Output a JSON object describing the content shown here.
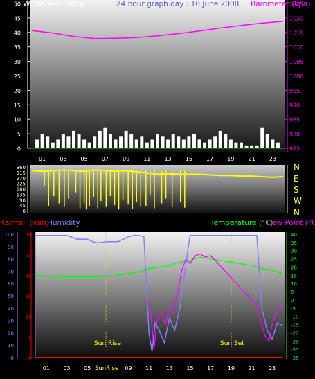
{
  "chart_data": [
    {
      "type": "line",
      "title": "24 hour graph day : 10 June 2008",
      "ylabel_left": "Windspeed (kph)",
      "ylabel_right": "Barometer (kpa)",
      "ylim_left": [
        0,
        50
      ],
      "ylim_right": [
        975,
        1025
      ],
      "yticks_left": [
        "0",
        "5",
        "10",
        "15",
        "20",
        "25",
        "30",
        "35",
        "40",
        "45",
        "50"
      ],
      "yticks_right": [
        "975",
        "980",
        "985",
        "990",
        "995",
        "1000",
        "1005",
        "1010",
        "1015",
        "1020",
        "1025"
      ],
      "xticks": [
        "01",
        "03",
        "05",
        "07",
        "09",
        "11",
        "13",
        "15",
        "17",
        "19",
        "21",
        "23"
      ],
      "grid": false,
      "series": [
        {
          "name": "Barometer (kpa)",
          "color": "#ff00ff",
          "axis": "right",
          "x": [
            0,
            2,
            4,
            6,
            8,
            10,
            12,
            14,
            16,
            18,
            20,
            22,
            24
          ],
          "values": [
            1015.6,
            1014.8,
            1013.6,
            1012.9,
            1013.0,
            1013.2,
            1013.8,
            1014.6,
            1015.5,
            1016.5,
            1017.4,
            1018.2,
            1018.8
          ]
        },
        {
          "name": "Windspeed (kph)",
          "color": "#ffffff",
          "axis": "left",
          "style": "bars",
          "x": [
            0.5,
            1,
            1.5,
            2,
            2.5,
            3,
            3.5,
            4,
            4.5,
            5,
            5.5,
            6,
            6.5,
            7,
            7.5,
            8,
            8.5,
            9,
            9.5,
            10,
            10.5,
            11,
            11.5,
            12,
            12.5,
            13,
            13.5,
            14,
            14.5,
            15,
            15.5,
            16,
            16.5,
            17,
            17.5,
            18,
            18.5,
            19,
            19.5,
            20,
            20.5,
            21,
            21.5,
            22,
            22.5,
            23,
            23.5
          ],
          "values": [
            3,
            5,
            4,
            2,
            3,
            5,
            4,
            6,
            5,
            3,
            2,
            4,
            6,
            7,
            5,
            3,
            4,
            6,
            5,
            3,
            4,
            2,
            3,
            5,
            4,
            3,
            5,
            4,
            3,
            4,
            5,
            3,
            2,
            3,
            4,
            6,
            5,
            3,
            2,
            2,
            1,
            1,
            1,
            7,
            5,
            3,
            2
          ]
        }
      ]
    },
    {
      "type": "line",
      "title": "",
      "yticks_left": [
        "0",
        "45",
        "90",
        "135",
        "180",
        "225",
        "270",
        "315",
        "360"
      ],
      "yticks_right": [
        "N",
        "E",
        "S",
        "W",
        "N"
      ],
      "ylim": [
        0,
        360
      ],
      "series": [
        {
          "name": "Wind direction",
          "color": "#ffff00",
          "x": [
            0,
            1,
            2,
            3,
            4,
            5,
            6,
            7,
            8,
            9,
            10,
            11,
            12,
            13,
            14,
            15,
            16,
            17,
            18,
            19,
            20,
            21,
            22,
            23,
            24
          ],
          "values": [
            330,
            325,
            330,
            335,
            330,
            325,
            335,
            330,
            325,
            330,
            320,
            310,
            300,
            305,
            300,
            300,
            300,
            295,
            290,
            290,
            285,
            285,
            280,
            275,
            280
          ]
        }
      ]
    },
    {
      "type": "line",
      "title": "",
      "ylabel_left_1": "Rainfall (mm)",
      "ylabel_left_2": "Humidity",
      "ylabel_right_1": "Temperature (°C)",
      "ylabel_right_2": "Dew Point (°C)",
      "ylim_rain": [
        0,
        30
      ],
      "ylim_humidity": [
        0,
        100
      ],
      "ylim_temp": [
        -35,
        40
      ],
      "yticks_rain": [
        "0",
        "5",
        "10",
        "15",
        "20",
        "25",
        "30"
      ],
      "yticks_humidity": [
        "0",
        "10",
        "20",
        "30",
        "40",
        "50",
        "60",
        "70",
        "80",
        "90",
        "100"
      ],
      "yticks_temp": [
        "-35",
        "-30",
        "-25",
        "-20",
        "-15",
        "-10",
        "-5",
        "0",
        "5",
        "10",
        "15",
        "20",
        "25",
        "30",
        "35",
        "40"
      ],
      "xticks": [
        "01",
        "03",
        "05",
        "07",
        "09",
        "11",
        "13",
        "15",
        "17",
        "19",
        "21",
        "23"
      ],
      "annotations": [
        "Sun Rise",
        "Sun Set",
        "SunRise"
      ],
      "series": [
        {
          "name": "Humidity",
          "color": "#8080ff",
          "axis": "humidity",
          "x": [
            0,
            1,
            2,
            3,
            4,
            5,
            5.5,
            6,
            7,
            8,
            9,
            9.5,
            10,
            10.5,
            11,
            11.3,
            11.6,
            12,
            12.5,
            13,
            13.5,
            14,
            14.5,
            15,
            16,
            17,
            18,
            19,
            20,
            21,
            21.5,
            22,
            22.5,
            23,
            23.5,
            24
          ],
          "values": [
            99,
            99,
            99,
            99,
            96,
            96,
            94,
            93,
            94,
            94,
            98,
            99,
            99,
            98,
            20,
            5,
            28,
            22,
            12,
            32,
            22,
            40,
            70,
            99,
            99,
            99,
            99,
            99,
            99,
            99,
            99,
            40,
            22,
            15,
            28,
            26
          ]
        },
        {
          "name": "Temperature (°C)",
          "color": "#00ff00",
          "axis": "temp",
          "x": [
            0,
            2,
            4,
            6,
            8,
            10,
            11,
            12,
            13,
            14,
            15,
            16,
            17,
            18,
            19,
            20,
            21,
            22,
            23,
            24
          ],
          "values": [
            15,
            14,
            14,
            14,
            15,
            17,
            19,
            20,
            21,
            23,
            24,
            26,
            25,
            24,
            23,
            22,
            21,
            19,
            18,
            16
          ]
        },
        {
          "name": "Dew Point (°C)",
          "color": "#ff00ff",
          "axis": "temp",
          "x": [
            11,
            11.2,
            11.5,
            11.8,
            12.2,
            12.6,
            13,
            13.4,
            13.8,
            14.2,
            14.6,
            15,
            15.5,
            16,
            16.5,
            17,
            21.5,
            22,
            22.3,
            22.7,
            23,
            23.5,
            24
          ],
          "values": [
            0,
            -10,
            -30,
            -12,
            -8,
            -15,
            -5,
            -8,
            5,
            18,
            25,
            22,
            27,
            28,
            26,
            27,
            -3,
            -15,
            -22,
            -25,
            -15,
            -5,
            -5
          ]
        },
        {
          "name": "Rainfall (mm)",
          "color": "#ff0000",
          "axis": "rain",
          "x": [
            0,
            24
          ],
          "values": [
            0,
            0
          ]
        }
      ]
    }
  ]
}
